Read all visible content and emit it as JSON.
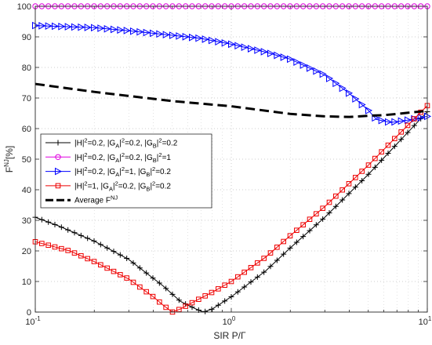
{
  "chart_data": {
    "type": "line",
    "xlabel_main": "SIR P/",
    "xlabel_gamma": "Γ",
    "ylabel_main": "F",
    "ylabel_sup": "NJ",
    "ylabel_unit": "[%]",
    "xscale": "log",
    "xlim": [
      0.1,
      10
    ],
    "ylim": [
      0,
      100
    ],
    "grid": true,
    "legend_position": "center-left",
    "y_ticks": [
      "0",
      "10",
      "20",
      "30",
      "40",
      "50",
      "60",
      "70",
      "80",
      "90",
      "100"
    ],
    "x_ticks": [
      {
        "base": "10",
        "exp": "-1"
      },
      {
        "base": "10",
        "exp": "0"
      },
      {
        "base": "10",
        "exp": "1"
      }
    ],
    "series": [
      {
        "name": "|H|²=0.2, |G_A|²=0.2, |G_B|²=0.2",
        "legend": [
          {
            "t": "|H|"
          },
          {
            "t": "2",
            "sup": true
          },
          {
            "t": "=0.2, |G"
          },
          {
            "t": "A",
            "sub": true
          },
          {
            "t": "|"
          },
          {
            "t": "2",
            "sup": true
          },
          {
            "t": "=0.2, |G"
          },
          {
            "t": "B",
            "sub": true
          },
          {
            "t": "|"
          },
          {
            "t": "2",
            "sup": true
          },
          {
            "t": "=0.2"
          }
        ],
        "color": "#000000",
        "marker": "plus",
        "line_style": "solid",
        "points": [
          [
            0.1,
            31
          ],
          [
            0.13,
            28.3
          ],
          [
            0.2,
            23.2
          ],
          [
            0.3,
            17.2
          ],
          [
            0.45,
            8.5
          ],
          [
            0.55,
            3.5
          ],
          [
            0.65,
            1.2
          ],
          [
            0.72,
            0
          ],
          [
            0.8,
            1
          ],
          [
            1.0,
            5
          ],
          [
            1.5,
            13.5
          ],
          [
            2.0,
            21
          ],
          [
            3.0,
            31
          ],
          [
            5.0,
            45
          ],
          [
            7.0,
            55
          ],
          [
            10.0,
            65.5
          ]
        ]
      },
      {
        "name": "|H|²=0.2, |G_A|²=0.2, |G_B|²=1",
        "legend": [
          {
            "t": "|H|"
          },
          {
            "t": "2",
            "sup": true
          },
          {
            "t": "=0.2, |G"
          },
          {
            "t": "A",
            "sub": true
          },
          {
            "t": "|"
          },
          {
            "t": "2",
            "sup": true
          },
          {
            "t": "=0.2, |G"
          },
          {
            "t": "B",
            "sub": true
          },
          {
            "t": "|"
          },
          {
            "t": "2",
            "sup": true
          },
          {
            "t": "=1"
          }
        ],
        "color": "#e000e0",
        "marker": "circle",
        "line_style": "solid",
        "points": [
          [
            0.1,
            100
          ],
          [
            10.0,
            100
          ]
        ]
      },
      {
        "name": "|H|²=0.2, |G_A|²=1, |G_B|²=0.2",
        "legend": [
          {
            "t": "|H|"
          },
          {
            "t": "2",
            "sup": true
          },
          {
            "t": "=0.2, |G"
          },
          {
            "t": "A",
            "sub": true
          },
          {
            "t": "|"
          },
          {
            "t": "2",
            "sup": true
          },
          {
            "t": "=1, |G"
          },
          {
            "t": "B",
            "sub": true
          },
          {
            "t": "|"
          },
          {
            "t": "2",
            "sup": true
          },
          {
            "t": "=0.2"
          }
        ],
        "color": "#0000ff",
        "marker": "triangle-right",
        "line_style": "solid",
        "points": [
          [
            0.1,
            93.7
          ],
          [
            0.2,
            93
          ],
          [
            0.3,
            92
          ],
          [
            0.5,
            90.5
          ],
          [
            0.7,
            89.5
          ],
          [
            1.0,
            87.6
          ],
          [
            1.5,
            85
          ],
          [
            2.0,
            82.7
          ],
          [
            3.0,
            77.5
          ],
          [
            4.0,
            71.5
          ],
          [
            5.0,
            66
          ],
          [
            5.5,
            63
          ],
          [
            6.5,
            62
          ],
          [
            8.0,
            62.8
          ],
          [
            10.0,
            64
          ]
        ]
      },
      {
        "name": "|H|²=1, |G_A|²=0.2, |G_B|²=0.2",
        "legend": [
          {
            "t": "|H|"
          },
          {
            "t": "2",
            "sup": true
          },
          {
            "t": "=1, |G"
          },
          {
            "t": "A",
            "sub": true
          },
          {
            "t": "|"
          },
          {
            "t": "2",
            "sup": true
          },
          {
            "t": "=0.2, |G"
          },
          {
            "t": "B",
            "sub": true
          },
          {
            "t": "|"
          },
          {
            "t": "2",
            "sup": true
          },
          {
            "t": "=0.2"
          }
        ],
        "color": "#ee0000",
        "marker": "square",
        "line_style": "solid",
        "points": [
          [
            0.1,
            23
          ],
          [
            0.15,
            20
          ],
          [
            0.2,
            16.5
          ],
          [
            0.3,
            10.8
          ],
          [
            0.4,
            5
          ],
          [
            0.45,
            2.2
          ],
          [
            0.5,
            0
          ],
          [
            0.55,
            1
          ],
          [
            0.65,
            3.5
          ],
          [
            0.8,
            6.5
          ],
          [
            1.0,
            10
          ],
          [
            1.5,
            18
          ],
          [
            2.0,
            25
          ],
          [
            3.0,
            34.5
          ],
          [
            5.0,
            48
          ],
          [
            7.0,
            57.5
          ],
          [
            10.0,
            67.5
          ]
        ]
      },
      {
        "name": "Average F^NJ",
        "legend": [
          {
            "t": "Average F"
          },
          {
            "t": "NJ",
            "sup": true
          }
        ],
        "color": "#000000",
        "marker": "none",
        "line_style": "dashed",
        "points": [
          [
            0.1,
            74.6
          ],
          [
            0.2,
            72
          ],
          [
            0.5,
            69
          ],
          [
            1.0,
            67.3
          ],
          [
            2.0,
            64.8
          ],
          [
            3.0,
            64
          ],
          [
            4.0,
            63.8
          ],
          [
            5.0,
            64.2
          ],
          [
            6.0,
            64.4
          ],
          [
            7.0,
            64.8
          ],
          [
            8.0,
            65.2
          ],
          [
            10.0,
            65.8
          ]
        ]
      }
    ]
  }
}
